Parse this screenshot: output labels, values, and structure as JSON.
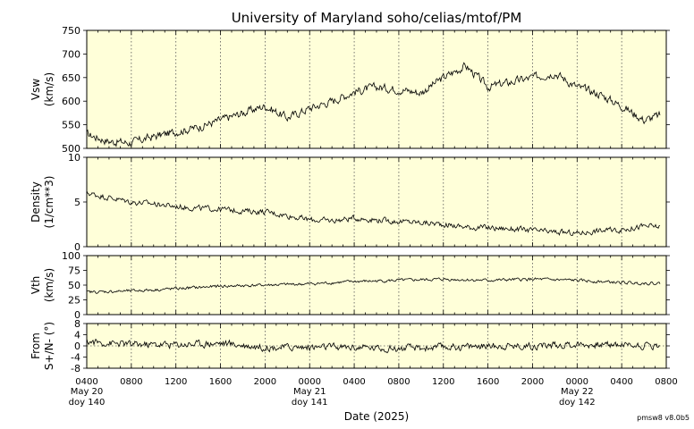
{
  "title": "University of Maryland  soho/celias/mtof/PM",
  "xlabel": "Date (2025)",
  "version": "pmsw8 v8.0b5",
  "x_range_hours": [
    0,
    52
  ],
  "x_tick_labels": [
    "0400",
    "0800",
    "1200",
    "1600",
    "2000",
    "0000",
    "0400",
    "0800",
    "1200",
    "1600",
    "2000",
    "0000",
    "0400",
    "0800"
  ],
  "day_labels": [
    {
      "tick_index": 0,
      "date": "May 20",
      "doy": "doy 140"
    },
    {
      "tick_index": 5,
      "date": "May 21",
      "doy": "doy 141"
    },
    {
      "tick_index": 11,
      "date": "May 22",
      "doy": "doy 142"
    }
  ],
  "chart_data": [
    {
      "type": "line",
      "ylabel": "Vsw\n(km/s)",
      "ylim": [
        500,
        750
      ],
      "yticks": [
        "500",
        "550",
        "600",
        "650",
        "700",
        "750"
      ],
      "grid": "vertical-dotted",
      "x": [
        0,
        2,
        4,
        6,
        8,
        10,
        12,
        14,
        16,
        18,
        20,
        22,
        24,
        26,
        28,
        30,
        32,
        34,
        36,
        38,
        40,
        42,
        44,
        46,
        48,
        50,
        51.5
      ],
      "values": [
        530,
        515,
        512,
        525,
        535,
        545,
        560,
        575,
        590,
        565,
        585,
        600,
        620,
        630,
        625,
        618,
        650,
        675,
        630,
        640,
        650,
        660,
        630,
        615,
        590,
        560,
        570
      ],
      "noise": 14
    },
    {
      "type": "line",
      "ylabel": "Density\n(1/cm**3)",
      "ylim": [
        0,
        10
      ],
      "yticks": [
        "0",
        "5",
        "10"
      ],
      "grid": "vertical-dotted",
      "x": [
        0,
        2,
        4,
        6,
        8,
        10,
        12,
        14,
        16,
        18,
        20,
        22,
        24,
        26,
        28,
        30,
        32,
        34,
        36,
        38,
        40,
        42,
        44,
        46,
        48,
        50,
        51.5
      ],
      "values": [
        6,
        5.5,
        5,
        4.8,
        4.5,
        4.3,
        4.2,
        4,
        3.9,
        3.5,
        3,
        2.9,
        3.2,
        3,
        2.8,
        2.7,
        2.5,
        2.2,
        2.1,
        2,
        1.8,
        1.6,
        1.5,
        1.8,
        1.9,
        2.3,
        2.2
      ],
      "noise": 0.5
    },
    {
      "type": "line",
      "ylabel": "Vth\n(km/s)",
      "ylim": [
        0,
        100
      ],
      "yticks": [
        "0",
        "25",
        "50",
        "75",
        "100"
      ],
      "grid": "vertical-dotted",
      "x": [
        0,
        4,
        8,
        12,
        16,
        20,
        24,
        28,
        32,
        36,
        40,
        44,
        48,
        51.5
      ],
      "values": [
        38,
        40,
        44,
        48,
        50,
        52,
        56,
        58,
        60,
        58,
        60,
        58,
        54,
        53
      ],
      "noise": 4
    },
    {
      "type": "line",
      "ylabel": "From\nS+/N- (°)",
      "ylim": [
        -8,
        8
      ],
      "yticks": [
        "-8",
        "-4",
        "0",
        "4",
        "8"
      ],
      "grid": "vertical-dotted-with-zero-line",
      "x": [
        0,
        4,
        8,
        12,
        16,
        20,
        24,
        28,
        32,
        36,
        40,
        44,
        48,
        51.5
      ],
      "values": [
        1.5,
        0.5,
        0.5,
        1,
        -0.5,
        -0.5,
        -0.5,
        -1,
        -0.5,
        0,
        0,
        0.5,
        0.5,
        0
      ],
      "noise": 2
    }
  ]
}
